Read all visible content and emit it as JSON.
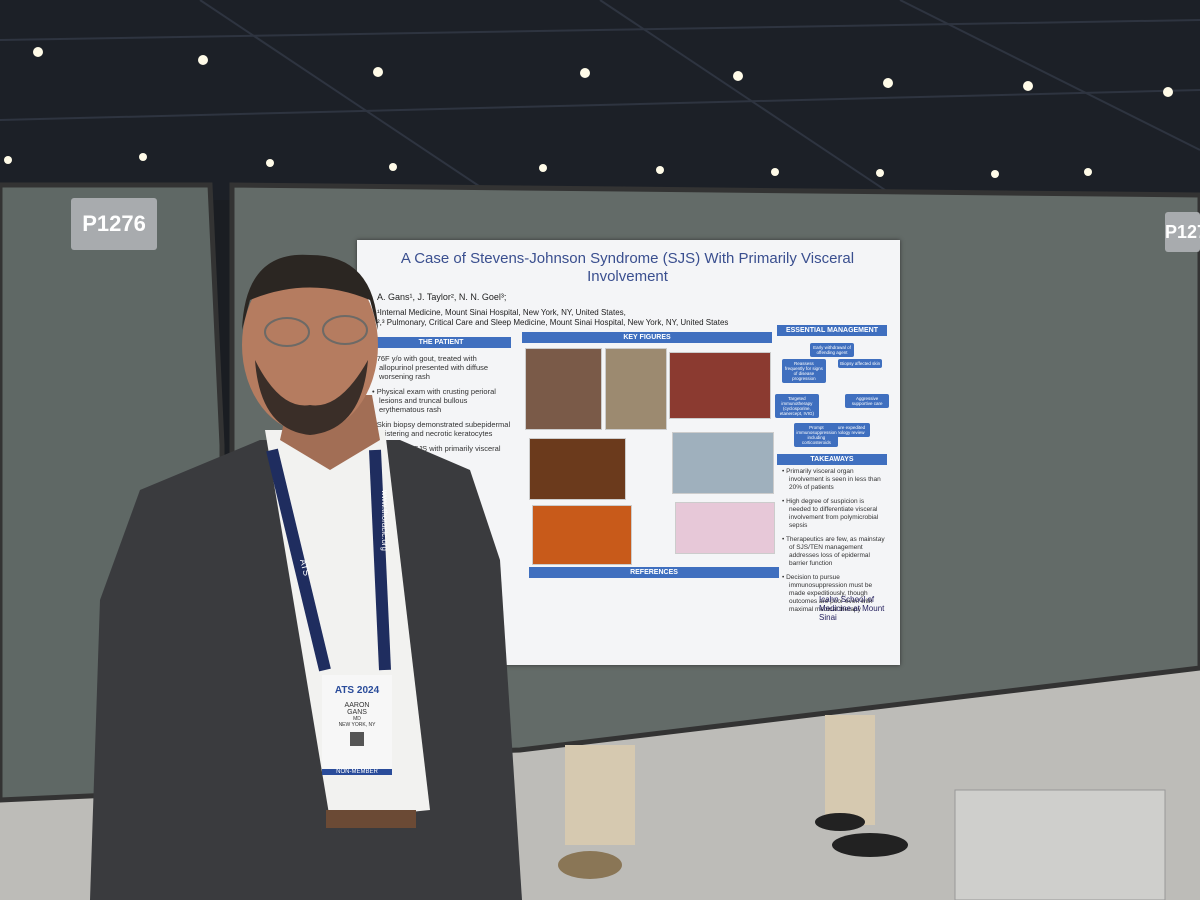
{
  "booth_labels": [
    "P1276",
    "P127"
  ],
  "poster": {
    "title": "A Case of Stevens-Johnson Syndrome (SJS) With Primarily Visceral Involvement",
    "authors": "A. Gans¹, J. Taylor², N. N. Goel³;",
    "affiliations": [
      "¹Internal Medicine, Mount Sinai Hospital, New York, NY, United States,",
      "²,³ Pulmonary, Critical Care and Sleep Medicine, Mount Sinai Hospital, New York, NY, United States"
    ],
    "patient": {
      "heading": "THE PATIENT",
      "bullets": [
        "76F y/o with gout, treated with allopurinol presented with diffuse worsening rash",
        "Physical exam with crusting perioral lesions and truncal bullous erythematous rash",
        "Skin biopsy demonstrated subepidermal blistering and necrotic keratocytes",
        "Confirmed SJS with primarily visceral involvement"
      ]
    },
    "figures": {
      "heading": "KEY FIGURES"
    },
    "management": {
      "heading": "ESSENTIAL MANAGEMENT",
      "steps": [
        "Early withdrawal of offending agent",
        "Biopsy affected skin",
        "Aggressive supportive care",
        "Ensure expedited pathology review",
        "Prompt immunosuppression including corticosteroids",
        "Targeted immunotherapy (cyclosporine, etanercept, IVIG)",
        "Reassess frequently for signs of disease progression"
      ]
    },
    "takeaways": {
      "heading": "TAKEAWAYS",
      "bullets": [
        "Primarily visceral organ involvement is seen in less than 20% of patients",
        "High degree of suspicion is needed to differentiate visceral involvement from polymicrobial sepsis",
        "Therapeutics are few, as mainstay of SJS/TEN management addresses loss of epidermal barrier function",
        "Decision to pursue immunosuppression must be made expeditiously, though outcomes are poor even with maximal medical therapy"
      ]
    },
    "references": {
      "heading": "REFERENCES"
    },
    "institution": "Icahn School of Medicine at Mount Sinai"
  },
  "badge": {
    "event": "ATS 2024",
    "first_name": "AARON",
    "last_name": "GANS",
    "credential": "MD",
    "location": "NEW YORK, NY",
    "status": "NON-MEMBER"
  },
  "lanyard": [
    "ATS",
    "www.thoracic.org"
  ]
}
